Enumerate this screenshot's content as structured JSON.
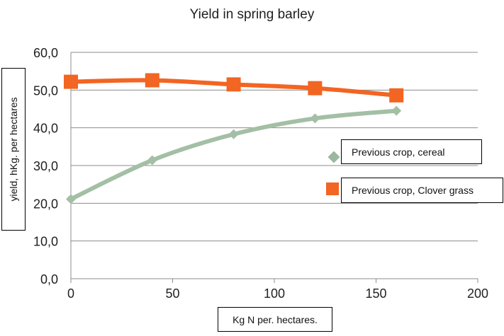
{
  "chart_data": {
    "type": "line",
    "title": "Yield in spring barley",
    "xlabel": "Kg N per. hectares.",
    "ylabel": "yield, hKg. per hectares",
    "xlim": [
      0,
      200
    ],
    "ylim": [
      0,
      60
    ],
    "x_ticks": [
      0,
      50,
      100,
      150,
      200
    ],
    "y_ticks": [
      0,
      10,
      20,
      30,
      40,
      50,
      60
    ],
    "y_tick_labels": [
      "0,0",
      "10,0",
      "20,0",
      "30,0",
      "40,0",
      "50,0",
      "60,0"
    ],
    "grid": true,
    "legend_position": "right",
    "series": [
      {
        "name": "Previous crop, cereal",
        "color": "#a3bfa5",
        "marker": "diamond",
        "points": [
          {
            "x": 0,
            "y": 21.1
          },
          {
            "x": 40,
            "y": 31.4
          },
          {
            "x": 80,
            "y": 38.3
          },
          {
            "x": 120,
            "y": 42.5
          },
          {
            "x": 160,
            "y": 44.5
          }
        ]
      },
      {
        "name": "Previous crop, Clover grass",
        "color": "#f26522",
        "marker": "square",
        "points": [
          {
            "x": 0,
            "y": 52.2
          },
          {
            "x": 40,
            "y": 52.6
          },
          {
            "x": 80,
            "y": 51.5
          },
          {
            "x": 120,
            "y": 50.5
          },
          {
            "x": 160,
            "y": 48.6
          }
        ]
      }
    ]
  }
}
